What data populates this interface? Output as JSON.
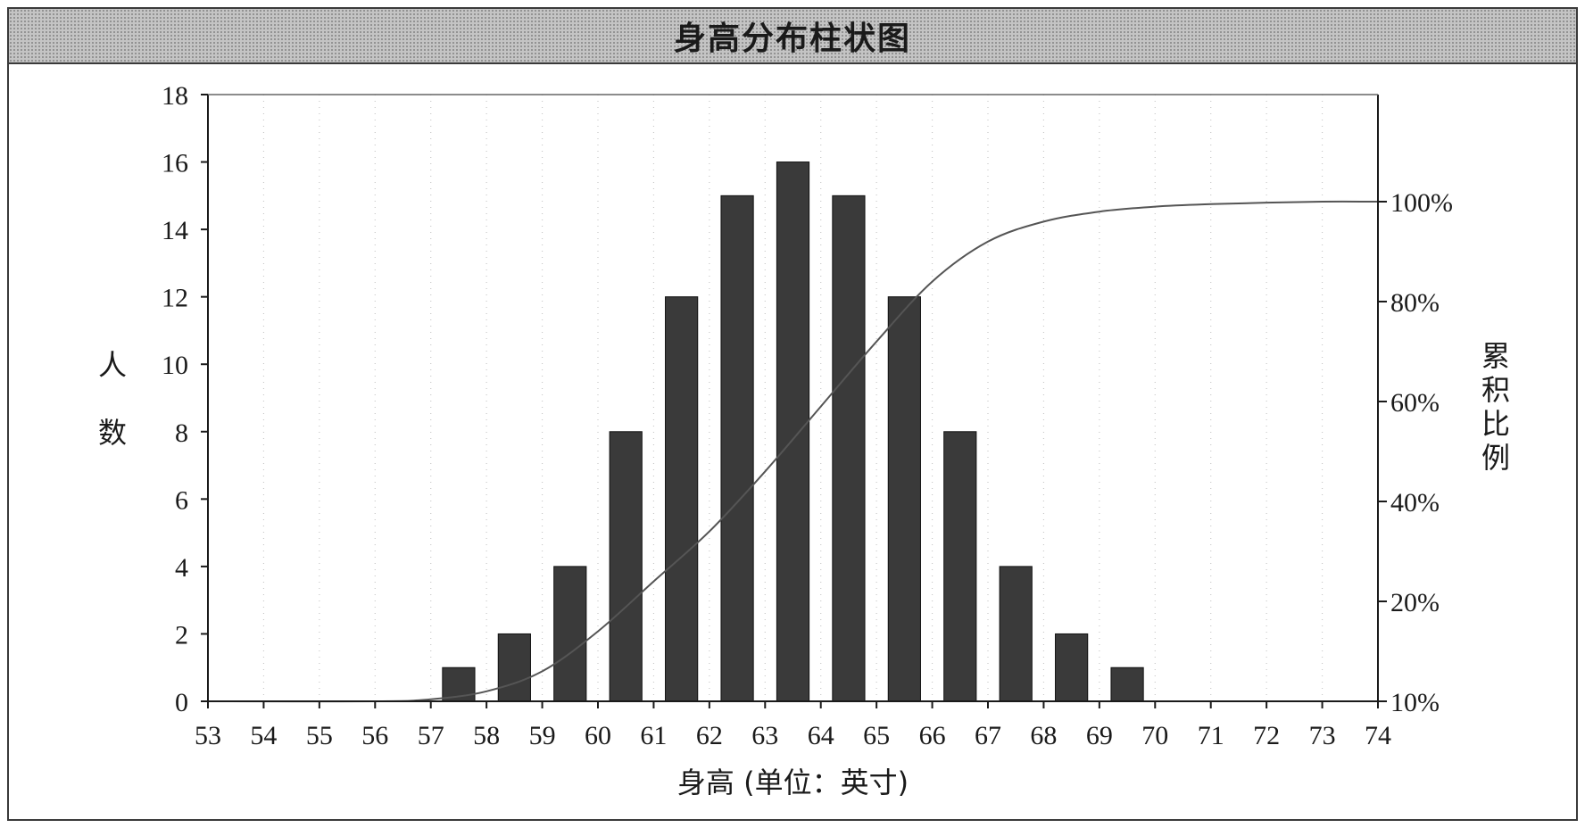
{
  "chart_data": {
    "type": "bar",
    "title": "身高分布柱状图",
    "xlabel": "身高 (单位：英寸)",
    "ylabel": "人数",
    "y2label": "累积比例",
    "x_ticks": [
      "53",
      "54",
      "55",
      "56",
      "57",
      "58",
      "59",
      "60",
      "61",
      "62",
      "63",
      "64",
      "65",
      "66",
      "67",
      "68",
      "69",
      "70",
      "71",
      "72",
      "73",
      "74"
    ],
    "xlim": [
      53,
      74
    ],
    "ylim": [
      0,
      18
    ],
    "y_ticks": [
      "0",
      "2",
      "4",
      "6",
      "8",
      "10",
      "12",
      "14",
      "16",
      "18"
    ],
    "y2_ticks": [
      "10%",
      "20%",
      "40%",
      "60%",
      "80%",
      "100%"
    ],
    "grid": "dotted vertical",
    "bars": [
      {
        "x": 57.5,
        "value": 1
      },
      {
        "x": 58.5,
        "value": 2
      },
      {
        "x": 59.5,
        "value": 4
      },
      {
        "x": 60.5,
        "value": 8
      },
      {
        "x": 61.5,
        "value": 12
      },
      {
        "x": 62.5,
        "value": 15
      },
      {
        "x": 63.5,
        "value": 16
      },
      {
        "x": 64.5,
        "value": 15
      },
      {
        "x": 65.5,
        "value": 12
      },
      {
        "x": 66.5,
        "value": 8
      },
      {
        "x": 67.5,
        "value": 4
      },
      {
        "x": 68.5,
        "value": 2
      },
      {
        "x": 69.5,
        "value": 1
      }
    ],
    "cumulative_curve": {
      "x": [
        53,
        56,
        57,
        58,
        59,
        60,
        61,
        62,
        63,
        64,
        65,
        66,
        67,
        68,
        69,
        70,
        71,
        72,
        73,
        74
      ],
      "y_percent": [
        10,
        10,
        10.2,
        11,
        13,
        17,
        24,
        34,
        46,
        59,
        72,
        84,
        92,
        96,
        98,
        99,
        99.5,
        99.8,
        100,
        100
      ]
    }
  },
  "colors": {
    "bar": "#3a3a3a",
    "axis": "#1a1a1a",
    "curve": "#555555",
    "title_band": "#c4c4c4"
  }
}
